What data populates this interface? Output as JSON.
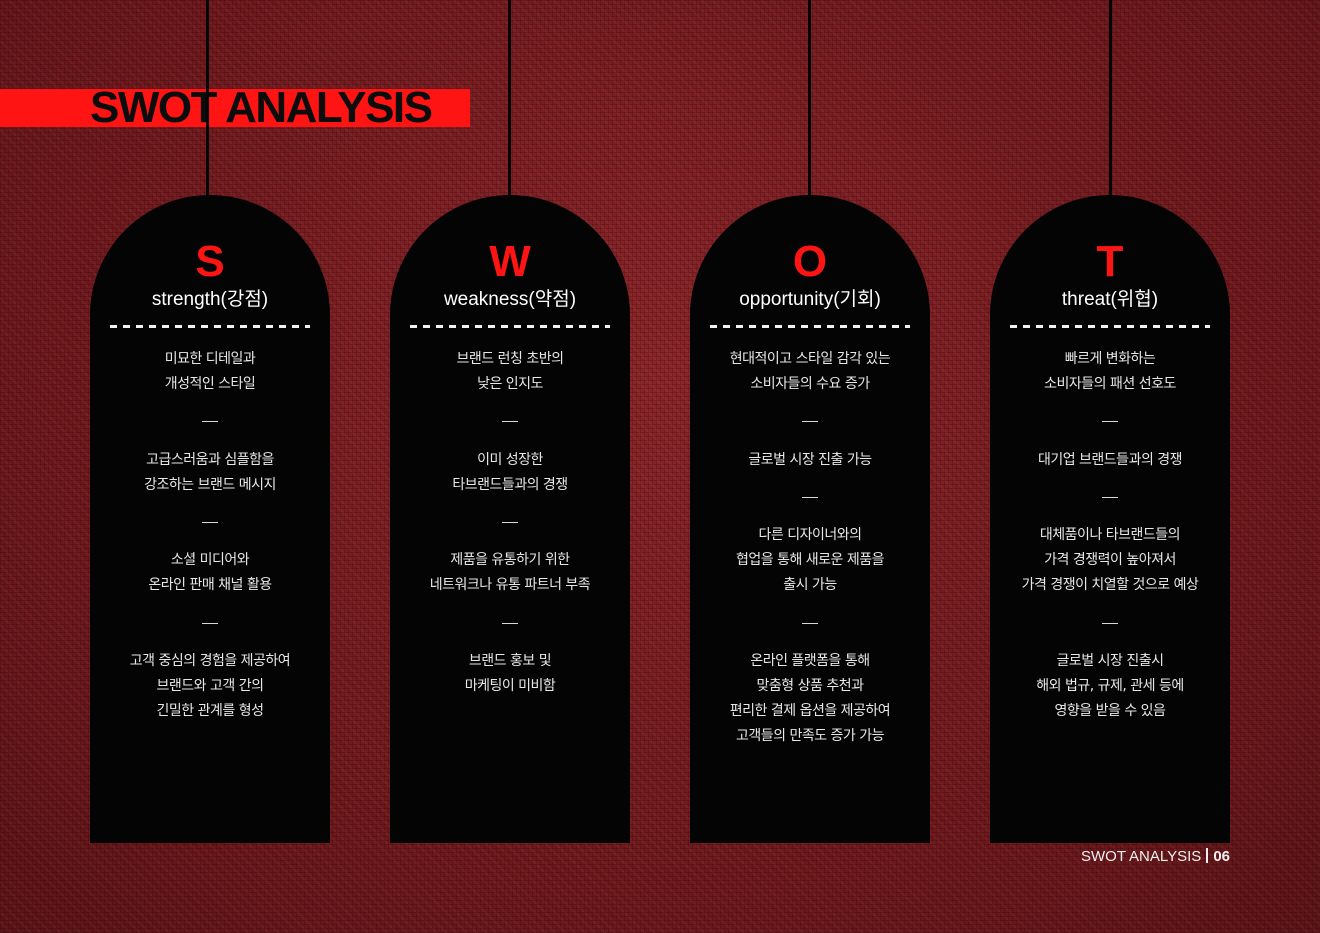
{
  "title": "SWOT ANALYSIS",
  "footer": {
    "label": "SWOT ANALYSIS",
    "page": "06"
  },
  "cards": [
    {
      "letter": "S",
      "subtitle": "strength(강점)",
      "items": [
        [
          "미묘한 디테일과",
          "개성적인 스타일"
        ],
        [
          "고급스러움과 심플함을",
          "강조하는 브랜드 메시지"
        ],
        [
          "소셜 미디어와",
          "온라인 판매 채널 활용"
        ],
        [
          "고객 중심의 경험을 제공하여",
          "브랜드와 고객 간의",
          "긴밀한 관계를 형성"
        ]
      ]
    },
    {
      "letter": "W",
      "subtitle": "weakness(약점)",
      "items": [
        [
          "브랜드 런칭 초반의",
          "낮은 인지도"
        ],
        [
          "이미 성장한",
          "타브랜드들과의 경쟁"
        ],
        [
          "제품을 유통하기 위한",
          "네트워크나 유통 파트너 부족"
        ],
        [
          "브랜드 홍보 및",
          "마케팅이 미비함"
        ]
      ]
    },
    {
      "letter": "O",
      "subtitle": "opportunity(기회)",
      "items": [
        [
          "현대적이고 스타일 감각 있는",
          "소비자들의 수요 증가"
        ],
        [
          "글로벌 시장 진출 가능"
        ],
        [
          "다른 디자이너와의",
          "협업을 통해 새로운 제품을",
          "출시 가능"
        ],
        [
          "온라인 플랫폼을 통해",
          "맞춤형 상품 추천과",
          "편리한 결제 옵션을 제공하여",
          "고객들의 만족도 증가 가능"
        ]
      ]
    },
    {
      "letter": "T",
      "subtitle": "threat(위협)",
      "items": [
        [
          "빠르게 변화하는",
          "소비자들의  패션 선호도"
        ],
        [
          "대기업 브랜드들과의 경쟁"
        ],
        [
          "대체품이나 타브랜드들의",
          "가격 경쟁력이 높아져서",
          "가격 경쟁이 치열할 것으로 예상"
        ],
        [
          "글로벌 시장 진출시",
          "해외 법규, 규제, 관세 등에",
          "영향을 받을 수 있음"
        ]
      ]
    }
  ],
  "colors": {
    "accent": "#ff1414",
    "card": "#040404",
    "background": "#7a1c20"
  }
}
